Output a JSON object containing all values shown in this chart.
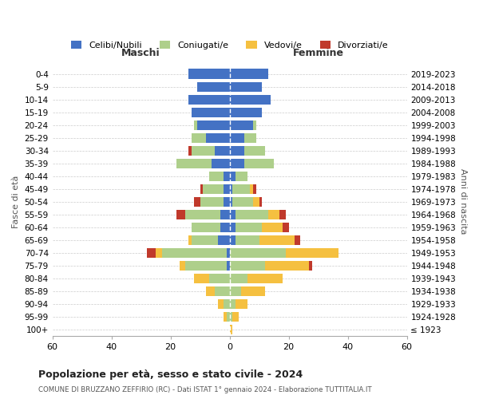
{
  "age_groups": [
    "100+",
    "95-99",
    "90-94",
    "85-89",
    "80-84",
    "75-79",
    "70-74",
    "65-69",
    "60-64",
    "55-59",
    "50-54",
    "45-49",
    "40-44",
    "35-39",
    "30-34",
    "25-29",
    "20-24",
    "15-19",
    "10-14",
    "5-9",
    "0-4"
  ],
  "birth_years": [
    "≤ 1923",
    "1924-1928",
    "1929-1933",
    "1934-1938",
    "1939-1943",
    "1944-1948",
    "1949-1953",
    "1954-1958",
    "1959-1963",
    "1964-1968",
    "1969-1973",
    "1974-1978",
    "1979-1983",
    "1984-1988",
    "1989-1993",
    "1994-1998",
    "1999-2003",
    "2004-2008",
    "2009-2013",
    "2014-2018",
    "2019-2023"
  ],
  "male": {
    "celibi": [
      0,
      0,
      0,
      0,
      0,
      1,
      1,
      4,
      3,
      3,
      2,
      2,
      2,
      6,
      5,
      8,
      11,
      13,
      14,
      11,
      14
    ],
    "coniugati": [
      0,
      1,
      2,
      5,
      7,
      14,
      22,
      9,
      10,
      12,
      8,
      7,
      5,
      12,
      8,
      5,
      1,
      0,
      0,
      0,
      0
    ],
    "vedovi": [
      0,
      1,
      2,
      3,
      5,
      2,
      2,
      1,
      0,
      0,
      0,
      0,
      0,
      0,
      0,
      0,
      0,
      0,
      0,
      0,
      0
    ],
    "divorziati": [
      0,
      0,
      0,
      0,
      0,
      0,
      3,
      0,
      0,
      3,
      2,
      1,
      0,
      0,
      1,
      0,
      0,
      0,
      0,
      0,
      0
    ]
  },
  "female": {
    "nubili": [
      0,
      0,
      0,
      0,
      0,
      0,
      0,
      2,
      2,
      2,
      1,
      1,
      2,
      5,
      5,
      5,
      8,
      11,
      14,
      11,
      13
    ],
    "coniugate": [
      0,
      1,
      2,
      4,
      6,
      12,
      19,
      8,
      9,
      11,
      7,
      6,
      4,
      10,
      7,
      4,
      1,
      0,
      0,
      0,
      0
    ],
    "vedove": [
      1,
      2,
      4,
      8,
      12,
      15,
      18,
      12,
      7,
      4,
      2,
      1,
      0,
      0,
      0,
      0,
      0,
      0,
      0,
      0,
      0
    ],
    "divorziate": [
      0,
      0,
      0,
      0,
      0,
      1,
      0,
      2,
      2,
      2,
      1,
      1,
      0,
      0,
      0,
      0,
      0,
      0,
      0,
      0,
      0
    ]
  },
  "colors": {
    "celibi_nubili": "#4472C4",
    "coniugati": "#AECF8B",
    "vedovi": "#F5C040",
    "divorziati": "#C0392B"
  },
  "title": "Popolazione per età, sesso e stato civile - 2024",
  "subtitle": "COMUNE DI BRUZZANO ZEFFIRIO (RC) - Dati ISTAT 1° gennaio 2024 - Elaborazione TUTTITALIA.IT",
  "xlabel_left": "Maschi",
  "xlabel_right": "Femmine",
  "ylabel_left": "Fasce di età",
  "ylabel_right": "Anni di nascita",
  "xlim": 60,
  "background_color": "#ffffff",
  "legend_labels": [
    "Celibi/Nubili",
    "Coniugati/e",
    "Vedovi/e",
    "Divorziati/e"
  ]
}
